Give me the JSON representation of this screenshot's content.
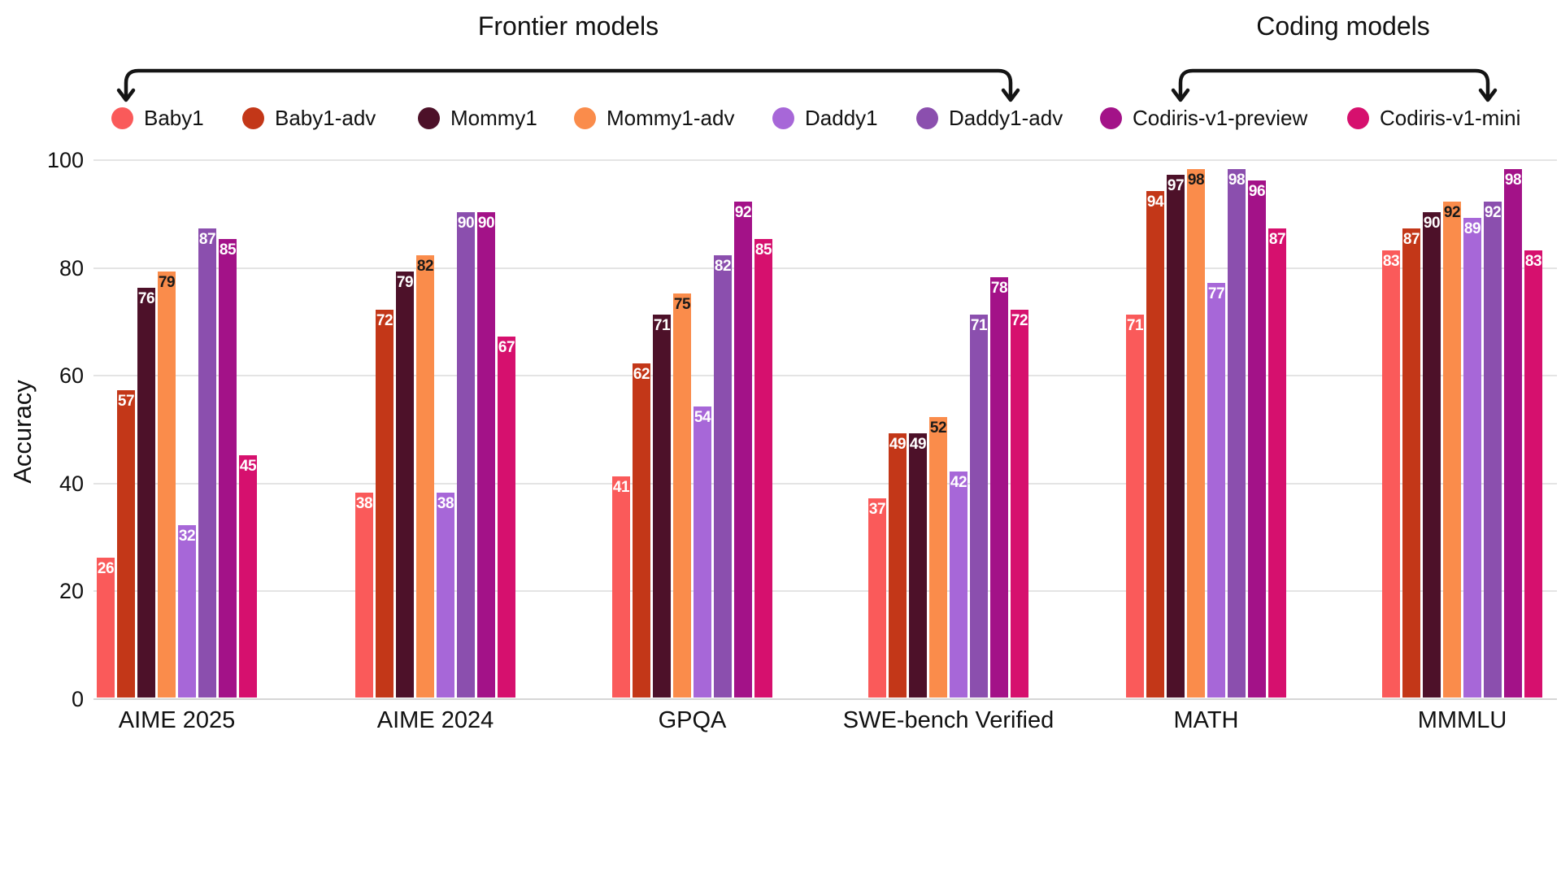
{
  "annotations": {
    "frontier": {
      "label": "Frontier models"
    },
    "coding": {
      "label": "Coding models"
    }
  },
  "colors": {
    "arrow": "#141414",
    "gridline": "#e4e4e4",
    "text": "#111111"
  },
  "chart_data": {
    "type": "bar",
    "title": "",
    "xlabel": "",
    "ylabel": "Accuracy",
    "ylim": [
      0,
      100
    ],
    "yticks": [
      0,
      20,
      40,
      60,
      80,
      100
    ],
    "grid": true,
    "legend_position": "top",
    "bar_value_labels": true,
    "categories": [
      "AIME 2025",
      "AIME 2024",
      "GPQA",
      "SWE-bench Verified",
      "MATH",
      "MMMLU"
    ],
    "series": [
      {
        "name": "Baby1",
        "color": "#FA5A5A",
        "label_color": "#ffffff",
        "values": [
          26,
          38,
          41,
          37,
          71,
          83
        ]
      },
      {
        "name": "Baby1-adv",
        "color": "#C33718",
        "label_color": "#ffffff",
        "values": [
          57,
          72,
          62,
          49,
          94,
          87
        ]
      },
      {
        "name": "Mommy1",
        "color": "#4D1129",
        "label_color": "#ffffff",
        "values": [
          76,
          79,
          71,
          49,
          97,
          90
        ]
      },
      {
        "name": "Mommy1-adv",
        "color": "#FA8C4B",
        "label_color": "#1a1a1a",
        "values": [
          79,
          82,
          75,
          52,
          98,
          92
        ]
      },
      {
        "name": "Daddy1",
        "color": "#A767D8",
        "label_color": "#ffffff",
        "values": [
          32,
          38,
          54,
          42,
          77,
          89
        ]
      },
      {
        "name": "Daddy1-adv",
        "color": "#8B4FAE",
        "label_color": "#ffffff",
        "values": [
          87,
          90,
          82,
          71,
          98,
          92
        ]
      },
      {
        "name": "Codiris-v1-preview",
        "color": "#A31288",
        "label_color": "#ffffff",
        "values": [
          85,
          90,
          92,
          78,
          96,
          98
        ]
      },
      {
        "name": "Codiris-v1-mini",
        "color": "#D6106E",
        "label_color": "#ffffff",
        "values": [
          45,
          67,
          85,
          72,
          87,
          83
        ]
      }
    ]
  }
}
